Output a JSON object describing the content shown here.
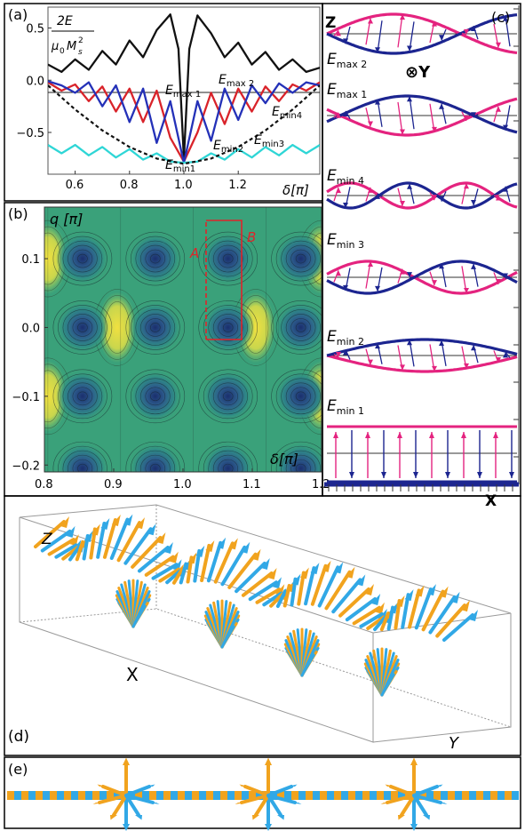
{
  "panels": {
    "a": {
      "label": "(a)",
      "ylabel_num": "2E",
      "ylabel_den_mu": "μ",
      "ylabel_den_0": "0",
      "ylabel_den_M": "M",
      "ylabel_den_s": "s",
      "ylabel_den_2": "2",
      "xlabel": "δ[π]",
      "xticks": [
        "0.6",
        "0.8",
        "1.0",
        "1.2"
      ],
      "yticks": [
        "0.5",
        "0.0",
        "−0.5"
      ],
      "annotations": {
        "Emax1": {
          "E": "E",
          "sub": "max 1"
        },
        "Emax2": {
          "E": "E",
          "sub": "max 2"
        },
        "Emin4": {
          "E": "E",
          "sub": "min4"
        },
        "Emin3": {
          "E": "E",
          "sub": "min3"
        },
        "Emin2": {
          "E": "E",
          "sub": "min2"
        },
        "Emin1": {
          "E": "E",
          "sub": "min1"
        }
      },
      "colors": {
        "black": "#111111",
        "red": "#d9232a",
        "blue": "#2431b8",
        "cyan": "#2fd6d6",
        "dashed": "#111111"
      }
    },
    "b": {
      "label": "(b)",
      "ylabel": "q [π]",
      "xlabel": "δ[π]",
      "xticks": [
        "0.8",
        "0.9",
        "1.0",
        "1.1",
        "1.2"
      ],
      "yticks": [
        "0.1",
        "0.0",
        "−0.1",
        "−0.2"
      ],
      "pathA": "A",
      "pathB": "B",
      "path_color": "#e0242a"
    },
    "c": {
      "label": "(c)",
      "axis_z": "Z",
      "axis_x": "X",
      "y_symbol": "⊗Y",
      "rows": [
        {
          "E": "E",
          "sub": "max 2"
        },
        {
          "E": "E",
          "sub": "max 1"
        },
        {
          "E": "E",
          "sub": "min 4"
        },
        {
          "E": "E",
          "sub": "min 3"
        },
        {
          "E": "E",
          "sub": "min 2"
        },
        {
          "E": "E",
          "sub": "min 1"
        }
      ],
      "colors": {
        "pink": "#e4237f",
        "navy": "#1c2590"
      }
    },
    "d": {
      "label": "(d)",
      "axis_z": "Z",
      "axis_x": "X",
      "axis_y": "Y",
      "colors": {
        "cyan": "#31a8e6",
        "orange": "#f1a31e"
      }
    },
    "e": {
      "label": "(e)"
    }
  },
  "chart_data": [
    {
      "type": "line",
      "panel": "a",
      "x_range": [
        0.5,
        1.5
      ],
      "y_range": [
        -0.9,
        0.7
      ],
      "xlabel": "δ[π]",
      "series_notes": [
        "black: maximum energy, oscillating, peak 0.63 near δ=1.0",
        "red & blue: intermediate branches between 0 and −0.8",
        "cyan: minimum branch oscillating near −0.7",
        "dashed black: envelope parabola, −0.8 at δ=1.0"
      ],
      "series": [
        {
          "color": "#111111",
          "x": [
            0.5,
            0.55,
            0.6,
            0.65,
            0.7,
            0.75,
            0.8,
            0.85,
            0.9,
            0.95,
            0.98,
            1.0,
            1.02,
            1.05,
            1.1,
            1.15,
            1.2,
            1.25,
            1.3,
            1.35,
            1.4,
            1.45,
            1.5
          ],
          "y": [
            0.15,
            0.08,
            0.2,
            0.1,
            0.28,
            0.15,
            0.38,
            0.22,
            0.48,
            0.63,
            0.3,
            -0.75,
            0.3,
            0.62,
            0.45,
            0.22,
            0.36,
            0.15,
            0.27,
            0.1,
            0.2,
            0.08,
            0.12
          ]
        },
        {
          "color": "#d9232a",
          "x": [
            0.5,
            0.55,
            0.6,
            0.65,
            0.7,
            0.75,
            0.8,
            0.85,
            0.9,
            0.95,
            1.0,
            1.05,
            1.1,
            1.15,
            1.2,
            1.25,
            1.3,
            1.35,
            1.4,
            1.45,
            1.5
          ],
          "y": [
            -0.02,
            -0.1,
            -0.04,
            -0.2,
            -0.06,
            -0.3,
            -0.08,
            -0.4,
            -0.1,
            -0.55,
            -0.78,
            -0.5,
            -0.12,
            -0.42,
            -0.08,
            -0.3,
            -0.06,
            -0.2,
            -0.04,
            -0.1,
            -0.02
          ]
        },
        {
          "color": "#2431b8",
          "x": [
            0.5,
            0.55,
            0.6,
            0.65,
            0.7,
            0.75,
            0.8,
            0.85,
            0.9,
            0.95,
            1.0,
            1.05,
            1.1,
            1.15,
            1.2,
            1.25,
            1.3,
            1.35,
            1.4,
            1.45,
            1.5
          ],
          "y": [
            -0.01,
            -0.05,
            -0.12,
            -0.02,
            -0.25,
            -0.05,
            -0.4,
            -0.08,
            -0.6,
            -0.2,
            -0.79,
            -0.2,
            -0.58,
            -0.08,
            -0.38,
            -0.05,
            -0.22,
            -0.03,
            -0.12,
            -0.02,
            -0.05
          ]
        },
        {
          "color": "#2fd6d6",
          "x": [
            0.5,
            0.55,
            0.6,
            0.65,
            0.7,
            0.75,
            0.8,
            0.85,
            0.9,
            0.95,
            1.0,
            1.05,
            1.1,
            1.15,
            1.2,
            1.25,
            1.3,
            1.35,
            1.4,
            1.45,
            1.5
          ],
          "y": [
            -0.62,
            -0.7,
            -0.62,
            -0.72,
            -0.64,
            -0.74,
            -0.66,
            -0.76,
            -0.7,
            -0.78,
            -0.79,
            -0.78,
            -0.7,
            -0.76,
            -0.66,
            -0.74,
            -0.64,
            -0.72,
            -0.62,
            -0.7,
            -0.62
          ]
        },
        {
          "color": "#111111",
          "dashed": true,
          "x": [
            0.5,
            0.6,
            0.7,
            0.8,
            0.9,
            1.0,
            1.1,
            1.2,
            1.3,
            1.4,
            1.5
          ],
          "y": [
            -0.05,
            -0.28,
            -0.48,
            -0.64,
            -0.75,
            -0.8,
            -0.75,
            -0.64,
            -0.48,
            -0.28,
            -0.05
          ]
        }
      ]
    },
    {
      "type": "heatmap",
      "panel": "b",
      "x_range": [
        0.8,
        1.2
      ],
      "y_range": [
        -0.21,
        0.175
      ],
      "minima_x": [
        0.855,
        0.96,
        1.065,
        1.17
      ],
      "minima_y": [
        -0.205,
        -0.1,
        0.0,
        0.1
      ],
      "maxima": [
        [
          0.905,
          0.0
        ],
        [
          1.105,
          0.0
        ],
        [
          0.805,
          0.1
        ],
        [
          0.805,
          -0.1
        ],
        [
          1.2,
          0.1
        ],
        [
          1.2,
          -0.1
        ]
      ]
    }
  ]
}
